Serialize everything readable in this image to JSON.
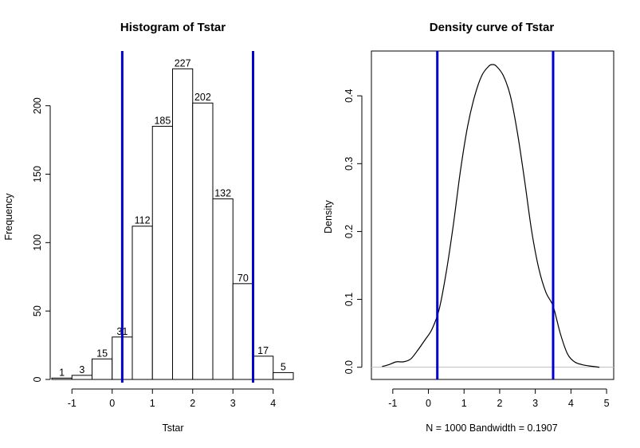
{
  "chart_data": [
    {
      "type": "bar",
      "title": "Histogram of Tstar",
      "xlabel": "Tstar",
      "ylabel": "Frequency",
      "bin_edges": [
        -1.5,
        -1.0,
        -0.5,
        0.0,
        0.5,
        1.0,
        1.5,
        2.0,
        2.5,
        3.0,
        3.5,
        4.0,
        4.5
      ],
      "values": [
        1,
        3,
        15,
        31,
        112,
        185,
        227,
        202,
        132,
        70,
        17,
        5
      ],
      "x_ticks": [
        -1,
        0,
        1,
        2,
        3,
        4
      ],
      "y_ticks": [
        0,
        50,
        100,
        150,
        200
      ],
      "xlim": [
        -1.5,
        4.5
      ],
      "ylim": [
        0,
        240
      ],
      "vlines": [
        0.25,
        3.5
      ],
      "vline_color": "#0000cc",
      "bar_fill": "#ffffff",
      "bar_stroke": "#000000"
    },
    {
      "type": "line",
      "title": "Density curve of Tstar",
      "xlabel": "N = 1000   Bandwidth = 0.1907",
      "ylabel": "Density",
      "x": [
        -1.3,
        -1.1,
        -0.9,
        -0.7,
        -0.5,
        -0.3,
        -0.1,
        0.1,
        0.3,
        0.5,
        0.7,
        0.9,
        1.1,
        1.3,
        1.5,
        1.7,
        1.8,
        1.9,
        2.1,
        2.3,
        2.5,
        2.7,
        2.9,
        3.1,
        3.3,
        3.5,
        3.7,
        3.9,
        4.1,
        4.3,
        4.5,
        4.8
      ],
      "y": [
        0.001,
        0.004,
        0.008,
        0.008,
        0.012,
        0.025,
        0.04,
        0.056,
        0.085,
        0.14,
        0.21,
        0.29,
        0.355,
        0.4,
        0.43,
        0.444,
        0.446,
        0.444,
        0.43,
        0.4,
        0.345,
        0.275,
        0.2,
        0.145,
        0.11,
        0.09,
        0.05,
        0.02,
        0.008,
        0.004,
        0.002,
        0.0
      ],
      "x_ticks": [
        -1,
        0,
        1,
        2,
        3,
        4,
        5
      ],
      "y_ticks": [
        0.0,
        0.1,
        0.2,
        0.3,
        0.4
      ],
      "y_tick_labels": [
        "0.0",
        "0.1",
        "0.2",
        "0.3",
        "0.4"
      ],
      "xlim": [
        -1.6,
        5.2
      ],
      "ylim": [
        -0.018,
        0.466
      ],
      "vlines": [
        0.25,
        3.5
      ],
      "vline_color": "#0000cc",
      "baseline_color": "#bebebe",
      "box": true
    }
  ]
}
